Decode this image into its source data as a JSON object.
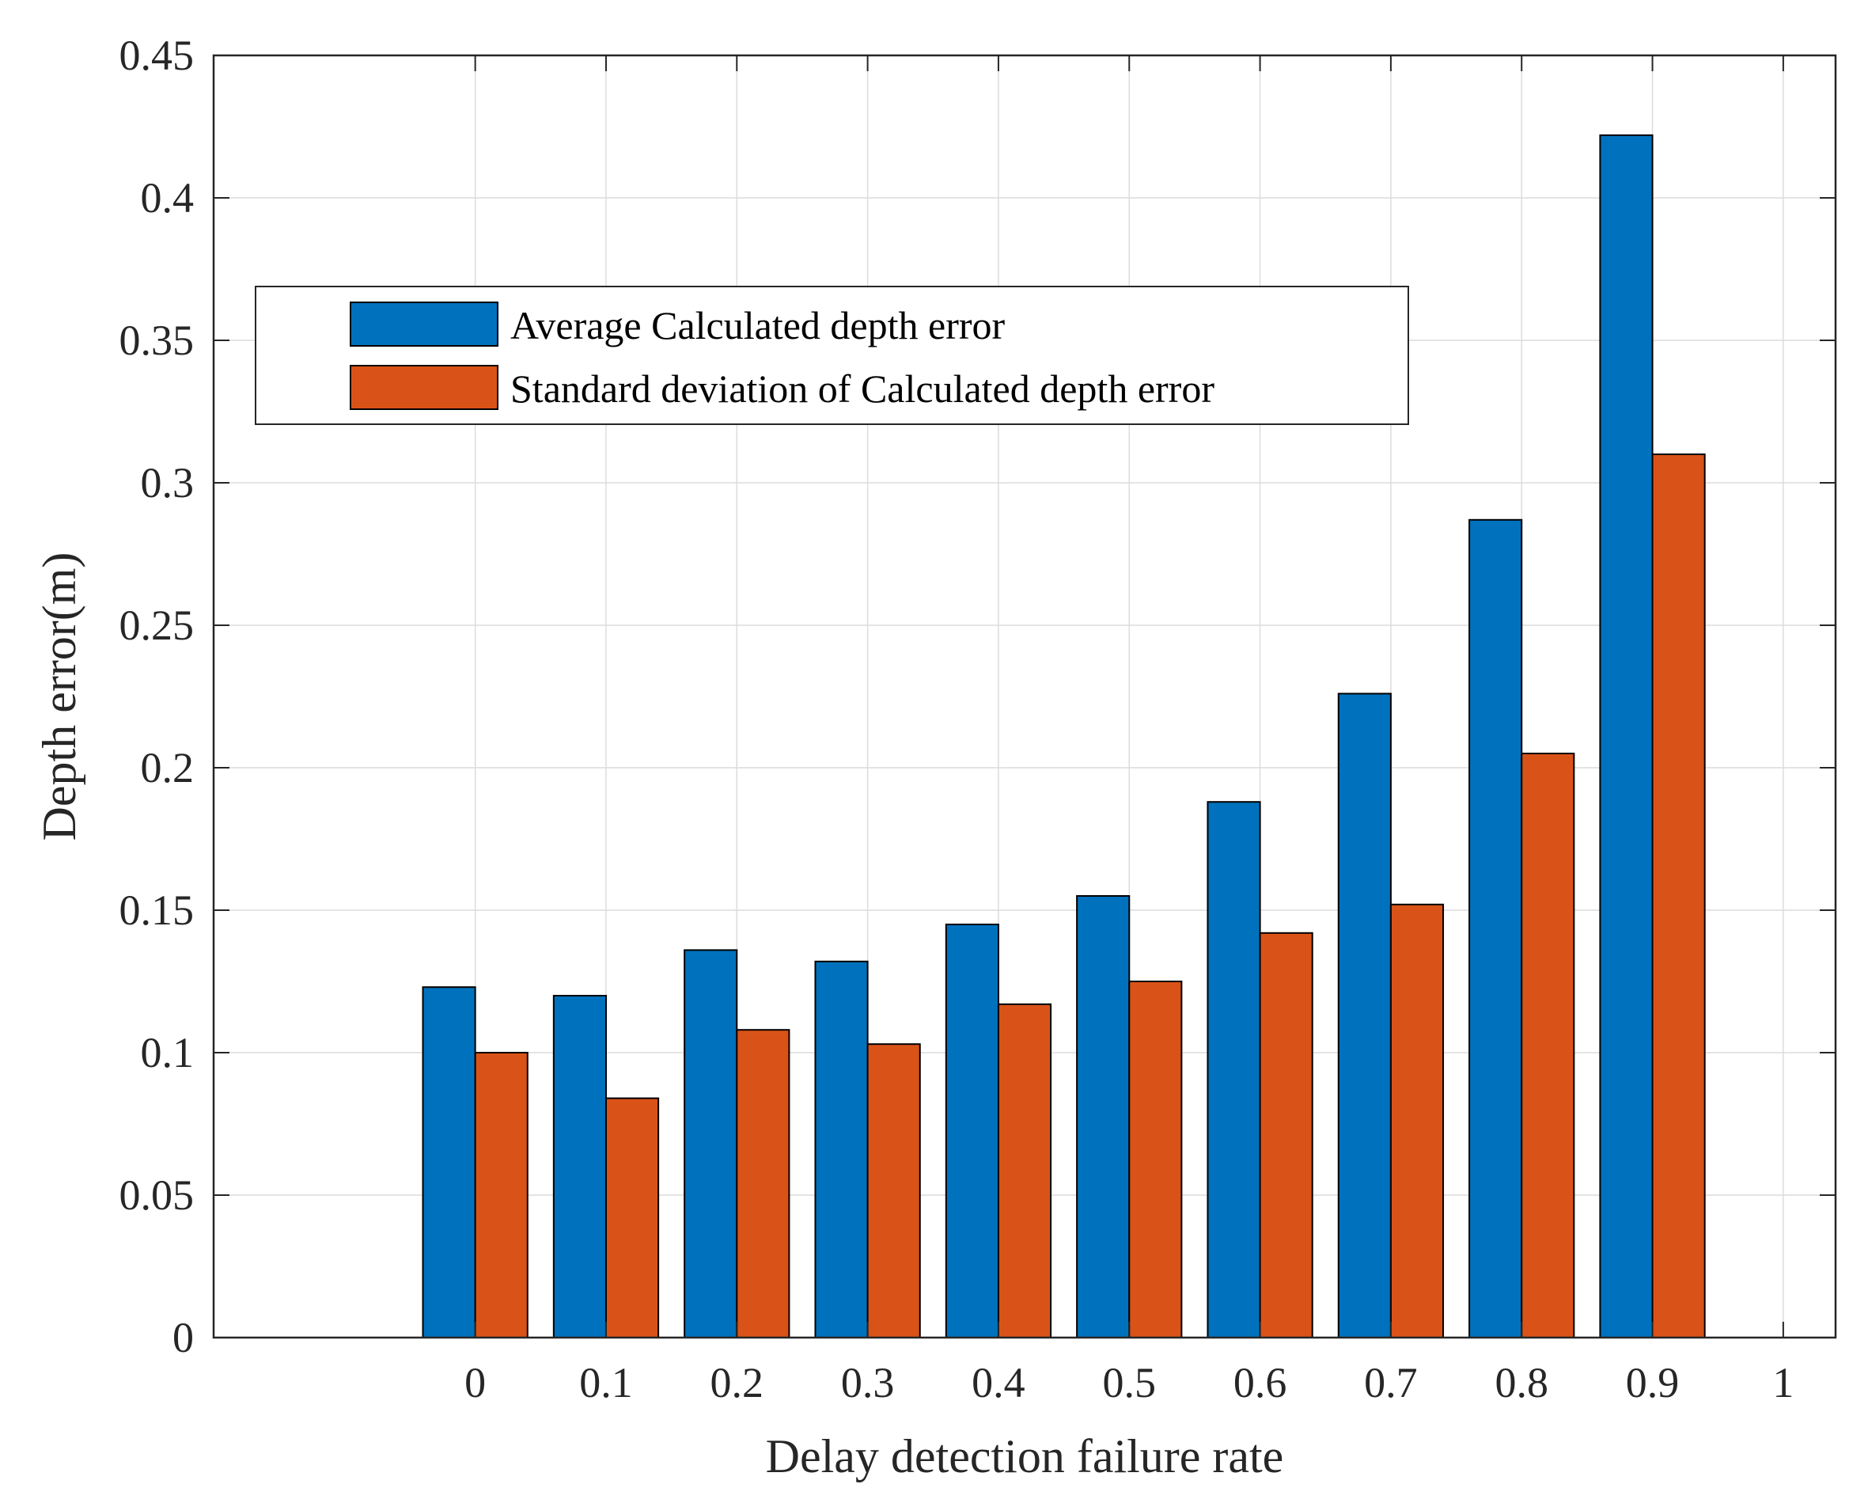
{
  "chart_data": {
    "type": "bar",
    "title": "",
    "xlabel": "Delay detection failure rate",
    "ylabel": "Depth error(m)",
    "categories": [
      "0",
      "0.1",
      "0.2",
      "0.3",
      "0.4",
      "0.5",
      "0.6",
      "0.7",
      "0.8",
      "0.9"
    ],
    "xticks": [
      "0",
      "0.1",
      "0.2",
      "0.3",
      "0.4",
      "0.5",
      "0.6",
      "0.7",
      "0.8",
      "0.9",
      "1"
    ],
    "yticks": [
      "0",
      "0.05",
      "0.1",
      "0.15",
      "0.2",
      "0.25",
      "0.3",
      "0.35",
      "0.4",
      "0.45"
    ],
    "ylim": [
      0,
      0.45
    ],
    "xlim": [
      -0.2,
      1.04
    ],
    "grid": true,
    "legend_position": "upper-left",
    "series": [
      {
        "name": "Average Calculated depth error",
        "color": "#0072BD",
        "values": [
          0.123,
          0.12,
          0.136,
          0.132,
          0.145,
          0.155,
          0.188,
          0.226,
          0.287,
          0.422
        ]
      },
      {
        "name": "Standard deviation of Calculated depth error",
        "color": "#D95319",
        "values": [
          0.1,
          0.084,
          0.108,
          0.103,
          0.117,
          0.125,
          0.142,
          0.152,
          0.205,
          0.31
        ]
      }
    ]
  }
}
